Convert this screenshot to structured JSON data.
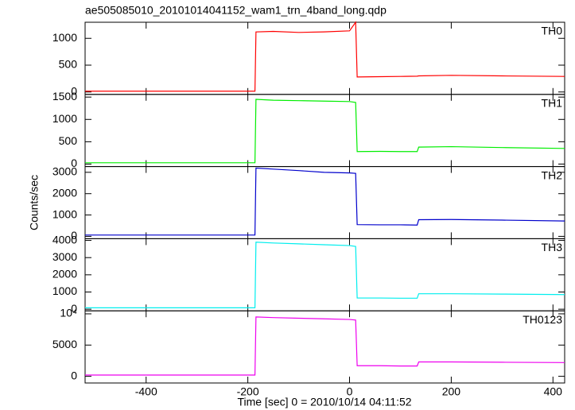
{
  "title": "ae505085010_20101014041152_wam1_trn_4band_long.qdp",
  "xlabel": "Time [sec] 0 = 2010/10/14 04:11:52",
  "ylabel": "Counts/sec",
  "chart_data": [
    {
      "type": "line",
      "label": "TH0",
      "color": "#ff0000",
      "xlim": [
        -520,
        423
      ],
      "ylim": [
        -45,
        1300
      ],
      "yticks": [
        0,
        500,
        1000
      ],
      "x": [
        -520,
        -186,
        -184,
        -150,
        -100,
        -50,
        0,
        12,
        15,
        60,
        100,
        133,
        136,
        200,
        300,
        423
      ],
      "values": [
        15,
        15,
        1120,
        1130,
        1110,
        1120,
        1140,
        1300,
        280,
        285,
        290,
        295,
        300,
        310,
        300,
        290
      ]
    },
    {
      "type": "line",
      "label": "TH1",
      "color": "#00ee00",
      "xlim": [
        -520,
        423
      ],
      "ylim": [
        -55,
        1560
      ],
      "yticks": [
        0,
        500,
        1000,
        1500
      ],
      "x": [
        -520,
        -186,
        -184,
        -150,
        -100,
        -50,
        0,
        12,
        15,
        60,
        100,
        133,
        136,
        200,
        300,
        423
      ],
      "values": [
        30,
        30,
        1450,
        1430,
        1420,
        1410,
        1400,
        1380,
        280,
        285,
        280,
        280,
        380,
        390,
        370,
        350
      ]
    },
    {
      "type": "line",
      "label": "TH2",
      "color": "#0000cc",
      "xlim": [
        -520,
        423
      ],
      "ylim": [
        -110,
        3270
      ],
      "yticks": [
        0,
        1000,
        2000,
        3000
      ],
      "x": [
        -520,
        -186,
        -184,
        -150,
        -100,
        -50,
        0,
        12,
        15,
        60,
        100,
        133,
        136,
        200,
        300,
        423
      ],
      "values": [
        60,
        60,
        3200,
        3150,
        3080,
        3000,
        2970,
        2950,
        550,
        540,
        540,
        530,
        780,
        790,
        760,
        720
      ]
    },
    {
      "type": "line",
      "label": "TH3",
      "color": "#00eeee",
      "xlim": [
        -520,
        423
      ],
      "ylim": [
        -95,
        4100
      ],
      "yticks": [
        0,
        1000,
        2000,
        3000,
        4000
      ],
      "x": [
        -520,
        -186,
        -184,
        -150,
        -100,
        -50,
        0,
        12,
        15,
        60,
        100,
        133,
        136,
        200,
        300,
        423
      ],
      "values": [
        80,
        80,
        3900,
        3850,
        3800,
        3750,
        3700,
        3650,
        650,
        650,
        640,
        640,
        900,
        900,
        880,
        850
      ]
    },
    {
      "type": "line",
      "label": "TH0123",
      "color": "#ee00ee",
      "xlim": [
        -520,
        423
      ],
      "ylim": [
        -1070,
        10480
      ],
      "yticks": [
        0,
        5000,
        {
          "value": 10000,
          "label": "10⁴"
        }
      ],
      "xticks": [
        -400,
        -200,
        0,
        200,
        400
      ],
      "x": [
        -520,
        -186,
        -184,
        -150,
        -100,
        -50,
        0,
        12,
        15,
        60,
        100,
        133,
        136,
        200,
        300,
        423
      ],
      "values": [
        200,
        200,
        9500,
        9400,
        9300,
        9200,
        9100,
        9000,
        1700,
        1700,
        1650,
        1650,
        2300,
        2300,
        2250,
        2200
      ]
    }
  ]
}
